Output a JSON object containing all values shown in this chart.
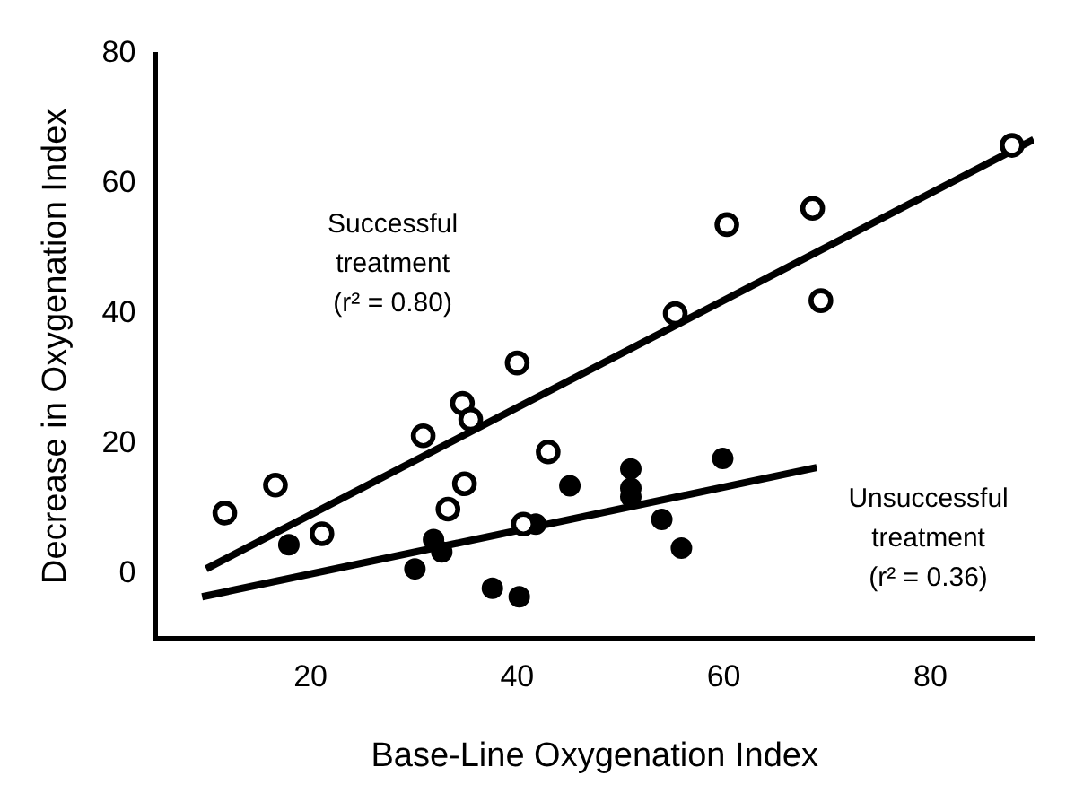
{
  "chart_data": {
    "type": "scatter",
    "xlabel": "Base-Line Oxygenation Index",
    "ylabel": "Decrease in Oxygenation Index",
    "xlim": [
      5,
      90
    ],
    "xticks": [
      20,
      40,
      60,
      80
    ],
    "ylim": [
      -10,
      80
    ],
    "yticks": [
      0,
      20,
      40,
      60,
      80
    ],
    "grid": false,
    "legend": false,
    "series": [
      {
        "marker": "circle",
        "color": "#000000",
        "x": [
          11.7,
          16.6,
          21.1,
          30.9,
          34.7,
          35.5,
          34.9,
          33.3,
          40.0,
          40.6,
          43.0,
          55.3,
          60.3,
          68.6,
          69.4,
          87.9
        ],
        "values": [
          9.3,
          13.6,
          6.1,
          21.2,
          26.2,
          23.7,
          13.8,
          9.9,
          32.4,
          7.6,
          18.7,
          40.0,
          53.7,
          56.2,
          42.0,
          65.9
        ]
      },
      {
        "marker": "circle",
        "color": "#000000",
        "x": [
          17.9,
          30.1,
          31.9,
          32.7,
          37.6,
          40.2,
          41.8,
          45.1,
          51.0,
          51.0,
          51.0,
          54.0,
          55.9,
          59.9
        ],
        "values": [
          4.4,
          0.7,
          5.2,
          3.3,
          -2.3,
          -3.6,
          7.6,
          13.5,
          16.1,
          13.1,
          11.8,
          8.3,
          3.9,
          17.7
        ]
      },
      {
        "type": "line",
        "marker": "none",
        "color": "#000000",
        "x": [
          9.9,
          90
        ],
        "values": [
          0.7,
          66.8
        ]
      },
      {
        "type": "line",
        "marker": "none",
        "color": "#000000",
        "x": [
          9.5,
          69.0
        ],
        "values": [
          -3.6,
          16.3
        ]
      }
    ],
    "annotations": [
      "Successful\ntreatment\n(r² = 0.80)",
      "Unsuccessful\ntreatment\n(r² = 0.36)"
    ]
  }
}
